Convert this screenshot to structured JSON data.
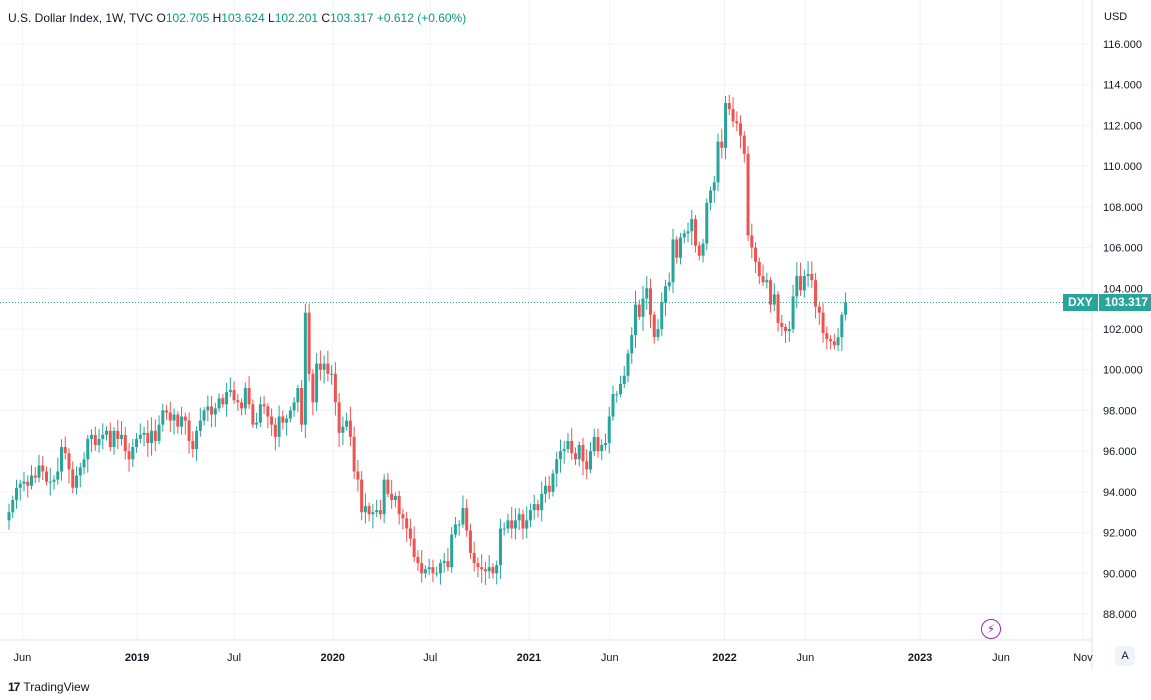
{
  "legend": {
    "title": "U.S. Dollar Index, 1W, TVC",
    "o_key": "O",
    "o": "102.705",
    "h_key": "H",
    "h": "103.624",
    "l_key": "L",
    "l": "102.201",
    "c_key": "C",
    "c": "103.317",
    "change": "+0.612 (+0.60%)"
  },
  "currency": "USD",
  "price_tag": {
    "symbol": "DXY",
    "price": "103.317"
  },
  "auto_label": "A",
  "brand": {
    "logo": "17",
    "name": "TradingView"
  },
  "colors": {
    "up": "#26a69a",
    "down": "#ef5350",
    "grid": "#f0f3fa",
    "accent": "#9c27b0"
  },
  "icons": {
    "flash": "lightning-icon",
    "logo": "tradingview-logo-icon"
  },
  "chart_data": {
    "type": "candlestick",
    "title": "U.S. Dollar Index, 1W, TVC",
    "y_axis_side": "right",
    "ylim": [
      87,
      117
    ],
    "y_ticks": [
      "88.000",
      "90.000",
      "92.000",
      "94.000",
      "96.000",
      "98.000",
      "100.000",
      "102.000",
      "104.000",
      "106.000",
      "108.000",
      "110.000",
      "112.000",
      "114.000",
      "116.000"
    ],
    "x_ticks": [
      {
        "label": "Jun",
        "date": "2018-06"
      },
      {
        "label": "2019",
        "date": "2019-01"
      },
      {
        "label": "Jul",
        "date": "2019-07"
      },
      {
        "label": "2020",
        "date": "2020-01"
      },
      {
        "label": "Jul",
        "date": "2020-07"
      },
      {
        "label": "2021",
        "date": "2021-01"
      },
      {
        "label": "Jun",
        "date": "2021-06"
      },
      {
        "label": "2022",
        "date": "2022-01"
      },
      {
        "label": "Jun",
        "date": "2022-06"
      },
      {
        "label": "2023",
        "date": "2023-01"
      },
      {
        "label": "Jun",
        "date": "2023-06"
      },
      {
        "label": "Nov",
        "date": "2023-11"
      }
    ],
    "series": [
      {
        "symbol": "DXY",
        "start_date": "2018-05-07",
        "interval": "1W",
        "closes": [
          93.0,
          93.6,
          94.2,
          94.4,
          94.5,
          94.3,
          94.8,
          94.7,
          95.3,
          95.0,
          94.5,
          94.5,
          94.6,
          95.0,
          96.2,
          95.9,
          95.1,
          94.2,
          94.8,
          95.2,
          95.6,
          96.6,
          96.8,
          96.3,
          96.6,
          96.8,
          97.0,
          96.2,
          97.0,
          96.6,
          96.8,
          96.0,
          95.6,
          96.2,
          96.6,
          96.8,
          96.9,
          96.4,
          97.0,
          96.5,
          97.3,
          98.0,
          97.9,
          97.5,
          97.8,
          97.2,
          97.7,
          97.5,
          96.5,
          96.1,
          97.0,
          97.5,
          98.0,
          98.2,
          97.8,
          98.1,
          98.6,
          98.3,
          98.9,
          99.0,
          98.5,
          98.4,
          98.1,
          99.1,
          98.3,
          97.3,
          97.4,
          98.3,
          98.2,
          97.7,
          97.3,
          96.7,
          97.7,
          97.4,
          97.6,
          98.0,
          98.4,
          99.1,
          97.3,
          102.8,
          99.8,
          98.4,
          100.3,
          100.0,
          100.3,
          99.8,
          99.8,
          98.4,
          96.9,
          97.2,
          97.5,
          96.7,
          95.0,
          94.6,
          93.0,
          93.3,
          92.9,
          93.0,
          93.1,
          92.9,
          94.6,
          93.9,
          93.6,
          93.8,
          92.9,
          92.7,
          92.2,
          91.7,
          90.8,
          90.5,
          90.0,
          90.2,
          90.3,
          90.0,
          90.0,
          90.5,
          90.6,
          90.3,
          91.9,
          92.4,
          92.4,
          93.2,
          92.1,
          91.0,
          90.5,
          90.3,
          90.2,
          90.1,
          90.3,
          90.0,
          90.4,
          92.2,
          92.2,
          92.6,
          92.2,
          92.6,
          92.9,
          92.2,
          92.6,
          93.1,
          93.4,
          93.1,
          93.9,
          94.3,
          94.0,
          94.9,
          95.6,
          96.0,
          96.1,
          96.5,
          95.9,
          95.6,
          96.3,
          95.5,
          95.1,
          96.0,
          96.7,
          96.0,
          96.3,
          96.4,
          97.7,
          98.8,
          98.8,
          99.3,
          99.7,
          100.8,
          101.7,
          103.2,
          102.6,
          103.5,
          104.0,
          102.7,
          101.6,
          102.0,
          103.3,
          104.1,
          104.3,
          106.4,
          105.5,
          106.5,
          106.7,
          106.8,
          107.4,
          106.1,
          105.6,
          106.2,
          108.2,
          108.8,
          109.2,
          111.2,
          110.9,
          113.1,
          112.8,
          112.2,
          112.1,
          111.5,
          110.6,
          106.6,
          106.0,
          105.3,
          104.6,
          104.3,
          104.4,
          103.2,
          103.7,
          102.3,
          102.1,
          101.9,
          102.0,
          103.6,
          104.6,
          103.9,
          104.6,
          104.7,
          104.4,
          103.1,
          102.8,
          101.8,
          101.5,
          101.4,
          101.2,
          101.6,
          102.7,
          103.3
        ]
      }
    ]
  }
}
